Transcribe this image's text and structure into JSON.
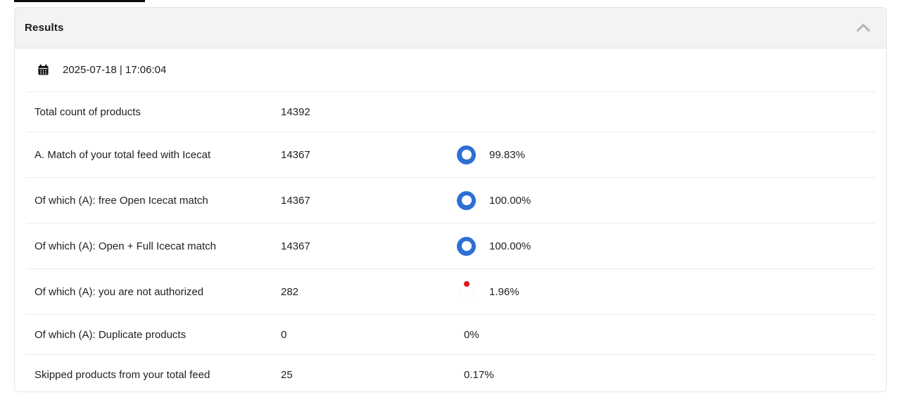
{
  "colors": {
    "match_blue": "#2e6fd6",
    "alert_red": "#e11414"
  },
  "top_strip": {
    "visible": true
  },
  "panel": {
    "title": "Results",
    "collapse_icon": "chevron-up-icon",
    "timestamp": {
      "icon": "calendar-icon",
      "text": "2025-07-18 | 17:06:04"
    },
    "rows": [
      {
        "label": "Total count of products",
        "value": "14392"
      },
      {
        "label": "A. Match of your total feed with Icecat",
        "value": "14367",
        "percent": "99.83%",
        "donut": {
          "pct": 99.83,
          "color": "#2e6fd6"
        }
      },
      {
        "label": "Of which (A): free Open Icecat match",
        "value": "14367",
        "percent": "100.00%",
        "donut": {
          "pct": 100,
          "color": "#2e6fd6"
        }
      },
      {
        "label": "Of which (A): Open + Full Icecat match",
        "value": "14367",
        "percent": "100.00%",
        "donut": {
          "pct": 100,
          "color": "#2e6fd6"
        }
      },
      {
        "label": "Of which (A): you are not authorized",
        "value": "282",
        "percent": "1.96%",
        "donut": {
          "pct": 1.96,
          "color": "#e11414"
        }
      },
      {
        "label": "Of which (A): Duplicate products",
        "value": "0",
        "percent": "0%"
      },
      {
        "label": "Skipped products from your total feed",
        "value": "25",
        "percent": "0.17%"
      }
    ]
  }
}
